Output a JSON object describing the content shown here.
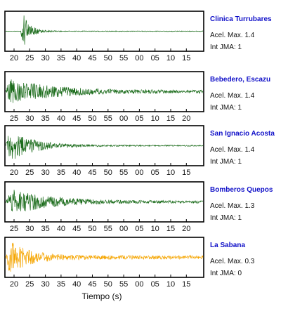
{
  "chart_data": [
    {
      "type": "line",
      "station": "Clinica Turrubares",
      "acel_text": "Acel. Max. 1.4",
      "int_text": "Int JMA: 1",
      "color": "#1a6b1a",
      "ticks": [
        "20",
        "25",
        "30",
        "35",
        "40",
        "45",
        "50",
        "55",
        "00",
        "05",
        "10",
        "15"
      ],
      "ticks_pos": "below",
      "signal": {
        "onset": 0.075,
        "peak": 0.09,
        "amp": 0.95,
        "decay": 0.035,
        "floor": 0.02,
        "seed": 3
      }
    },
    {
      "type": "line",
      "station": "Bebedero, Escazu",
      "acel_text": "Acel. Max. 1.4",
      "int_text": "Int JMA: 1",
      "color": "#1a6b1a",
      "ticks": [
        "25",
        "30",
        "35",
        "40",
        "45",
        "50",
        "55",
        "00",
        "05",
        "10",
        "15",
        "20"
      ],
      "ticks_pos": "below",
      "signal": {
        "onset": 0.0,
        "peak": 0.02,
        "amp": 0.7,
        "decay": 0.22,
        "floor": 0.08,
        "seed": 7
      }
    },
    {
      "type": "line",
      "station": "San Ignacio Acosta",
      "acel_text": "Acel. Max. 1.4",
      "int_text": "Int JMA: 1",
      "color": "#1a6b1a",
      "ticks": [
        "20",
        "25",
        "30",
        "35",
        "40",
        "45",
        "50",
        "55",
        "00",
        "05",
        "10",
        "15"
      ],
      "ticks_pos": "below",
      "signal": {
        "onset": 0.0,
        "peak": 0.02,
        "amp": 0.9,
        "decay": 0.12,
        "floor": 0.03,
        "seed": 11
      }
    },
    {
      "type": "line",
      "station": "Bomberos Quepos",
      "acel_text": "Acel. Max. 1.3",
      "int_text": "Int JMA: 1",
      "color": "#1a6b1a",
      "ticks": [
        "25",
        "30",
        "35",
        "40",
        "45",
        "50",
        "55",
        "00",
        "05",
        "10",
        "15",
        "20"
      ],
      "ticks_pos": "below",
      "signal": {
        "onset": 0.0,
        "peak": 0.03,
        "amp": 0.7,
        "decay": 0.2,
        "floor": 0.06,
        "seed": 19
      }
    },
    {
      "type": "line",
      "station": "La Sabana",
      "acel_text": "Acel. Max. 0.3",
      "int_text": "Int JMA: 0",
      "color": "#f5a500",
      "ticks": [
        "20",
        "25",
        "30",
        "35",
        "40",
        "45",
        "50",
        "55",
        "00",
        "05",
        "10",
        "15"
      ],
      "ticks_pos": "below",
      "signal": {
        "onset": 0.0,
        "peak": 0.02,
        "amp": 0.95,
        "decay": 0.1,
        "floor": 0.1,
        "seed": 29
      }
    }
  ],
  "xlabel": "Tiempo (s)"
}
